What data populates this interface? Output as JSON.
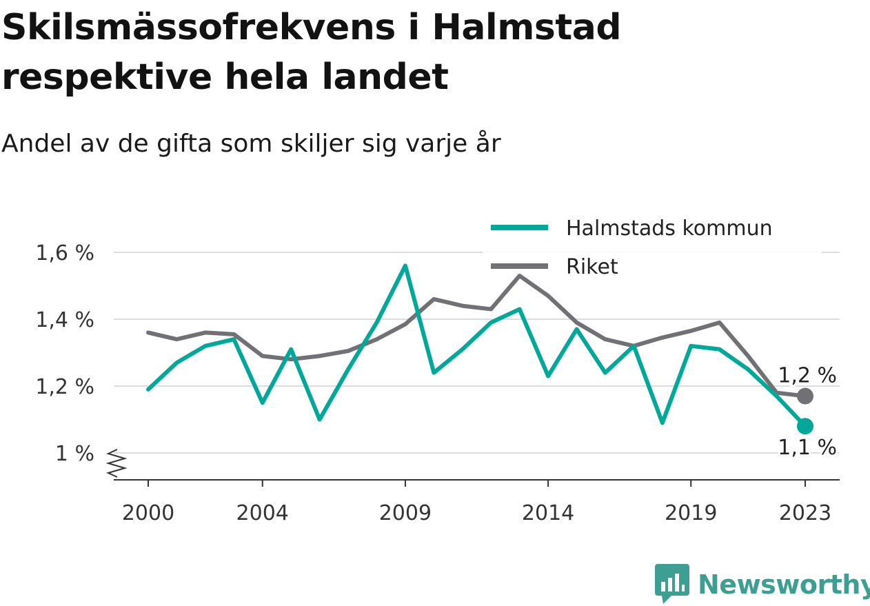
{
  "header": {
    "title": "Skilsmässofrekvens i Halmstad respektive hela landet",
    "subtitle": "Andel av de gifta som skiljer sig varje år"
  },
  "brand": {
    "name": "Newsworthy",
    "icon": "newsworthy-logo-icon",
    "color": "#3d9e92"
  },
  "colors": {
    "halmstad": "#00a89a",
    "riket": "#707075",
    "grid": "#dddddd",
    "axis": "#333333"
  },
  "chart_data": {
    "type": "line",
    "title": "Skilsmässofrekvens i Halmstad respektive hela landet",
    "subtitle": "Andel av de gifta som skiljer sig varje år",
    "xlabel": "",
    "ylabel": "",
    "x": [
      2000,
      2001,
      2002,
      2003,
      2004,
      2005,
      2006,
      2007,
      2008,
      2009,
      2010,
      2011,
      2012,
      2013,
      2014,
      2015,
      2016,
      2017,
      2018,
      2019,
      2020,
      2021,
      2022,
      2023
    ],
    "x_tick_values": [
      2000,
      2004,
      2009,
      2014,
      2019,
      2023
    ],
    "x_tick_labels": [
      "2000",
      "2004",
      "2009",
      "2014",
      "2019",
      "2023"
    ],
    "y_tick_values": [
      1.0,
      1.2,
      1.4,
      1.6
    ],
    "y_tick_labels": [
      "1 %",
      "1,2 %",
      "1,4 %",
      "1,6 %"
    ],
    "ylim": [
      0.92,
      1.65
    ],
    "y_axis_break": true,
    "grid": true,
    "legend_position": "top-right",
    "series": [
      {
        "name": "Halmstads kommun",
        "color": "#00a89a",
        "values": [
          1.19,
          1.27,
          1.32,
          1.34,
          1.15,
          1.31,
          1.1,
          1.25,
          1.39,
          1.56,
          1.24,
          1.31,
          1.39,
          1.43,
          1.23,
          1.37,
          1.24,
          1.32,
          1.09,
          1.32,
          1.31,
          1.25,
          1.17,
          1.08
        ],
        "end_label": "1,1 %"
      },
      {
        "name": "Riket",
        "color": "#707075",
        "values": [
          1.36,
          1.34,
          1.36,
          1.355,
          1.29,
          1.28,
          1.29,
          1.305,
          1.34,
          1.385,
          1.46,
          1.44,
          1.43,
          1.53,
          1.47,
          1.39,
          1.34,
          1.32,
          1.345,
          1.365,
          1.39,
          1.29,
          1.18,
          1.17
        ],
        "end_label": "1,2 %"
      }
    ]
  }
}
